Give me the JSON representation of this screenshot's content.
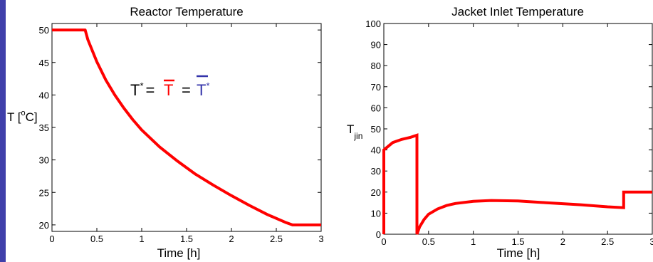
{
  "chart_data": [
    {
      "type": "line",
      "title": "Reactor Temperature",
      "xlabel": "Time [h]",
      "ylabel_main": "T [",
      "ylabel_sup": "o",
      "ylabel_tail": "C]",
      "xlim": [
        0,
        3
      ],
      "ylim": [
        19,
        51
      ],
      "xticks": [
        "0",
        "0.5",
        "1",
        "1.5",
        "2",
        "2.5",
        "3"
      ],
      "xtick_values": [
        0,
        0.5,
        1,
        1.5,
        2,
        2.5,
        3
      ],
      "yticks": [
        "20",
        "25",
        "30",
        "35",
        "40",
        "45",
        "50"
      ],
      "ytick_values": [
        20,
        25,
        30,
        35,
        40,
        45,
        50
      ],
      "grid": false,
      "line_color": "#ff0000",
      "series": [
        {
          "x": [
            0,
            0.37,
            0.4,
            0.5,
            0.6,
            0.7,
            0.8,
            0.9,
            1.0,
            1.2,
            1.4,
            1.6,
            1.8,
            2.0,
            2.2,
            2.4,
            2.6,
            2.68,
            2.8,
            3.0
          ],
          "y": [
            50,
            50,
            48.5,
            45.1,
            42.3,
            40.0,
            38.0,
            36.2,
            34.6,
            32.0,
            29.8,
            27.8,
            26.1,
            24.5,
            23.0,
            21.6,
            20.4,
            20,
            20,
            20
          ]
        }
      ],
      "annotation": {
        "t": "T",
        "star": "*",
        "eq": "=",
        "tbar_red": "T",
        "tbar_blue": "T",
        "red_color": "#ff0000",
        "blue_color": "#3333aa"
      }
    },
    {
      "type": "line",
      "title": "Jacket Inlet Temperature",
      "xlabel": "Time [h]",
      "ylabel_main": "T",
      "ylabel_sub": "jin",
      "xlim": [
        0,
        3
      ],
      "ylim": [
        0,
        100
      ],
      "xticks": [
        "0",
        "0.5",
        "1",
        "1.5",
        "2",
        "2.5",
        "3"
      ],
      "xtick_values": [
        0,
        0.5,
        1,
        1.5,
        2,
        2.5,
        3
      ],
      "yticks": [
        "0",
        "10",
        "20",
        "30",
        "40",
        "50",
        "60",
        "70",
        "80",
        "90",
        "100"
      ],
      "ytick_values": [
        0,
        10,
        20,
        30,
        40,
        50,
        60,
        70,
        80,
        90,
        100
      ],
      "grid": false,
      "line_color": "#ff0000",
      "series": [
        {
          "x": [
            0,
            0,
            0.1,
            0.2,
            0.3,
            0.37,
            0.37,
            0.4,
            0.45,
            0.5,
            0.6,
            0.7,
            0.8,
            1.0,
            1.2,
            1.5,
            1.8,
            2.0,
            2.2,
            2.5,
            2.68,
            2.68,
            3.0
          ],
          "y": [
            0,
            40,
            43.5,
            45,
            46,
            47,
            0,
            3.5,
            7,
            9.5,
            12,
            13.6,
            14.6,
            15.6,
            16,
            15.8,
            15,
            14.5,
            14,
            13,
            12.6,
            20,
            20
          ]
        }
      ]
    }
  ]
}
